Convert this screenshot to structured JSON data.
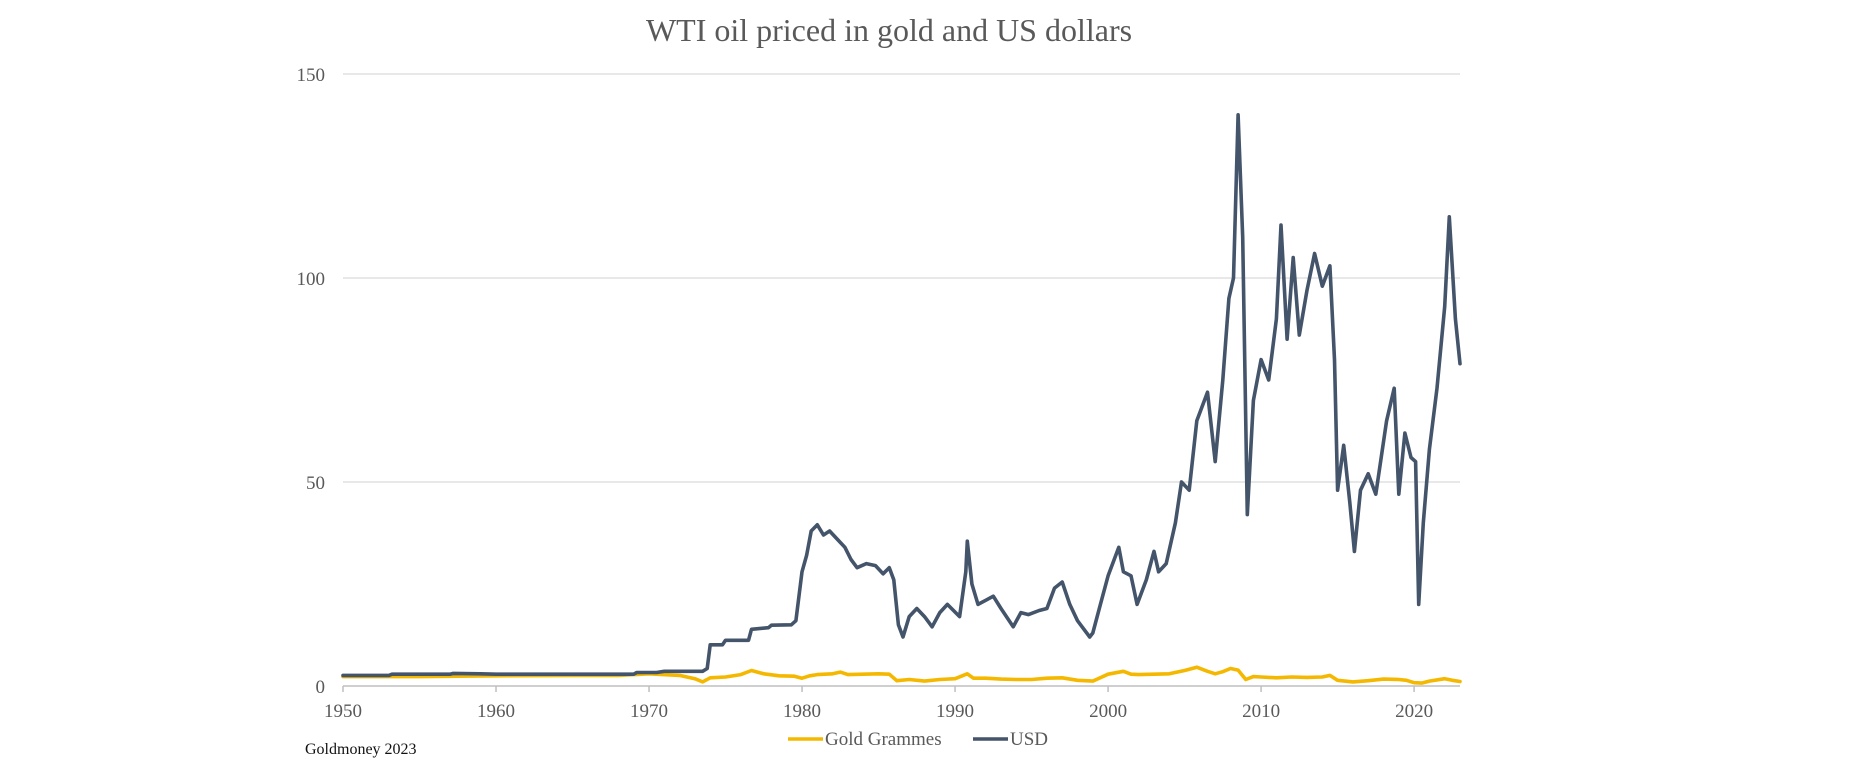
{
  "chart_data": {
    "type": "line",
    "title": "WTI oil priced in gold and US dollars",
    "xlabel": "",
    "ylabel": "",
    "xlim": [
      1950,
      2023
    ],
    "ylim": [
      0,
      150
    ],
    "xticks": [
      "1950",
      "1960",
      "1970",
      "1980",
      "1990",
      "2000",
      "2010",
      "2020"
    ],
    "yticks": [
      "0",
      "50",
      "100",
      "150"
    ],
    "grid": "horizontal",
    "legend": "bottom",
    "source": "Goldmoney 2023",
    "colors": {
      "gold": "#F5B800",
      "usd": "#44546A",
      "grid": "#D9D9D9",
      "axis": "#BFBFBF"
    },
    "series": [
      {
        "name": "Gold Grammes",
        "color": "#F5B800",
        "points": [
          [
            1950,
            2.3
          ],
          [
            1955,
            2.3
          ],
          [
            1960,
            2.5
          ],
          [
            1965,
            2.6
          ],
          [
            1968,
            2.6
          ],
          [
            1970,
            3.0
          ],
          [
            1972,
            2.6
          ],
          [
            1973,
            1.8
          ],
          [
            1973.5,
            1.0
          ],
          [
            1974,
            2.0
          ],
          [
            1975,
            2.2
          ],
          [
            1976,
            2.8
          ],
          [
            1976.7,
            3.8
          ],
          [
            1977.5,
            3.0
          ],
          [
            1978.5,
            2.5
          ],
          [
            1979.5,
            2.4
          ],
          [
            1980,
            1.9
          ],
          [
            1980.5,
            2.5
          ],
          [
            1981,
            2.8
          ],
          [
            1982,
            3.0
          ],
          [
            1982.5,
            3.4
          ],
          [
            1983,
            2.8
          ],
          [
            1984,
            2.9
          ],
          [
            1985,
            3.0
          ],
          [
            1985.7,
            2.9
          ],
          [
            1986.2,
            1.3
          ],
          [
            1987,
            1.6
          ],
          [
            1988,
            1.2
          ],
          [
            1989,
            1.6
          ],
          [
            1990,
            1.8
          ],
          [
            1990.8,
            3.0
          ],
          [
            1991.2,
            1.9
          ],
          [
            1992,
            1.9
          ],
          [
            1993,
            1.7
          ],
          [
            1994,
            1.6
          ],
          [
            1995,
            1.6
          ],
          [
            1996,
            1.9
          ],
          [
            1997,
            2.0
          ],
          [
            1998,
            1.4
          ],
          [
            1999,
            1.2
          ],
          [
            2000,
            2.9
          ],
          [
            2001,
            3.6
          ],
          [
            2001.5,
            2.9
          ],
          [
            2002,
            2.8
          ],
          [
            2003,
            2.9
          ],
          [
            2004,
            3.0
          ],
          [
            2005,
            3.8
          ],
          [
            2005.8,
            4.6
          ],
          [
            2006.5,
            3.6
          ],
          [
            2007,
            3.0
          ],
          [
            2007.5,
            3.5
          ],
          [
            2008,
            4.3
          ],
          [
            2008.5,
            3.9
          ],
          [
            2009,
            1.6
          ],
          [
            2009.5,
            2.3
          ],
          [
            2010,
            2.2
          ],
          [
            2011,
            2.0
          ],
          [
            2012,
            2.2
          ],
          [
            2013,
            2.1
          ],
          [
            2014,
            2.2
          ],
          [
            2014.5,
            2.6
          ],
          [
            2015,
            1.4
          ],
          [
            2016,
            1.0
          ],
          [
            2017,
            1.3
          ],
          [
            2018,
            1.7
          ],
          [
            2019,
            1.6
          ],
          [
            2019.5,
            1.4
          ],
          [
            2020,
            0.8
          ],
          [
            2020.5,
            0.7
          ],
          [
            2021,
            1.2
          ],
          [
            2022,
            1.8
          ],
          [
            2022.5,
            1.4
          ],
          [
            2023,
            1.1
          ]
        ]
      },
      {
        "name": "USD",
        "color": "#44546A",
        "points": [
          [
            1950,
            2.6
          ],
          [
            1953,
            2.6
          ],
          [
            1953.2,
            2.9
          ],
          [
            1957,
            2.9
          ],
          [
            1957.2,
            3.1
          ],
          [
            1959,
            3.0
          ],
          [
            1960,
            2.9
          ],
          [
            1965,
            2.9
          ],
          [
            1969,
            2.9
          ],
          [
            1969.2,
            3.3
          ],
          [
            1970.5,
            3.3
          ],
          [
            1971,
            3.6
          ],
          [
            1973.5,
            3.6
          ],
          [
            1973.8,
            4.3
          ],
          [
            1974,
            10.1
          ],
          [
            1974.8,
            10.1
          ],
          [
            1975,
            11.2
          ],
          [
            1976.5,
            11.2
          ],
          [
            1976.7,
            13.9
          ],
          [
            1977.8,
            14.3
          ],
          [
            1978,
            14.9
          ],
          [
            1979.3,
            15.0
          ],
          [
            1979.6,
            16.0
          ],
          [
            1980,
            28.0
          ],
          [
            1980.3,
            32.0
          ],
          [
            1980.6,
            38.0
          ],
          [
            1981,
            39.5
          ],
          [
            1981.4,
            37.0
          ],
          [
            1981.8,
            38.0
          ],
          [
            1982.3,
            36.0
          ],
          [
            1982.8,
            34.0
          ],
          [
            1983.2,
            31.0
          ],
          [
            1983.6,
            29.0
          ],
          [
            1984.2,
            30.0
          ],
          [
            1984.8,
            29.5
          ],
          [
            1985.3,
            27.5
          ],
          [
            1985.7,
            29.0
          ],
          [
            1986,
            26.0
          ],
          [
            1986.3,
            15.0
          ],
          [
            1986.6,
            12.0
          ],
          [
            1987,
            17.0
          ],
          [
            1987.5,
            19.0
          ],
          [
            1988,
            17.0
          ],
          [
            1988.5,
            14.5
          ],
          [
            1989,
            18.0
          ],
          [
            1989.5,
            20.0
          ],
          [
            1990.3,
            17.0
          ],
          [
            1990.7,
            28.0
          ],
          [
            1990.8,
            35.5
          ],
          [
            1991.1,
            25.0
          ],
          [
            1991.5,
            20.0
          ],
          [
            1992,
            21.0
          ],
          [
            1992.5,
            22.0
          ],
          [
            1993,
            19.0
          ],
          [
            1993.8,
            14.5
          ],
          [
            1994.3,
            18.0
          ],
          [
            1994.8,
            17.5
          ],
          [
            1995.5,
            18.5
          ],
          [
            1996,
            19.0
          ],
          [
            1996.5,
            24.0
          ],
          [
            1997,
            25.5
          ],
          [
            1997.5,
            20.0
          ],
          [
            1998,
            16.0
          ],
          [
            1998.8,
            12.0
          ],
          [
            1999,
            13.0
          ],
          [
            1999.5,
            20.0
          ],
          [
            2000,
            27.0
          ],
          [
            2000.7,
            34.0
          ],
          [
            2001,
            28.0
          ],
          [
            2001.5,
            27.0
          ],
          [
            2001.9,
            20.0
          ],
          [
            2002.5,
            26.0
          ],
          [
            2003,
            33.0
          ],
          [
            2003.3,
            28.0
          ],
          [
            2003.8,
            30.0
          ],
          [
            2004.4,
            40.0
          ],
          [
            2004.8,
            50.0
          ],
          [
            2005.3,
            48.0
          ],
          [
            2005.8,
            65.0
          ],
          [
            2006.5,
            72.0
          ],
          [
            2007,
            55.0
          ],
          [
            2007.5,
            75.0
          ],
          [
            2007.9,
            95.0
          ],
          [
            2008.2,
            100.0
          ],
          [
            2008.5,
            140.0
          ],
          [
            2008.8,
            110.0
          ],
          [
            2009.1,
            42.0
          ],
          [
            2009.5,
            70.0
          ],
          [
            2010,
            80.0
          ],
          [
            2010.5,
            75.0
          ],
          [
            2011,
            90.0
          ],
          [
            2011.3,
            113.0
          ],
          [
            2011.7,
            85.0
          ],
          [
            2012.1,
            105.0
          ],
          [
            2012.5,
            86.0
          ],
          [
            2013,
            97.0
          ],
          [
            2013.5,
            106.0
          ],
          [
            2014,
            98.0
          ],
          [
            2014.5,
            103.0
          ],
          [
            2014.8,
            80.0
          ],
          [
            2015,
            48.0
          ],
          [
            2015.4,
            59.0
          ],
          [
            2015.8,
            45.0
          ],
          [
            2016.1,
            33.0
          ],
          [
            2016.5,
            48.0
          ],
          [
            2017,
            52.0
          ],
          [
            2017.5,
            47.0
          ],
          [
            2018.2,
            65.0
          ],
          [
            2018.7,
            73.0
          ],
          [
            2019,
            47.0
          ],
          [
            2019.4,
            62.0
          ],
          [
            2019.8,
            56.0
          ],
          [
            2020.1,
            55.0
          ],
          [
            2020.3,
            20.0
          ],
          [
            2020.6,
            40.0
          ],
          [
            2021,
            58.0
          ],
          [
            2021.5,
            73.0
          ],
          [
            2022,
            93.0
          ],
          [
            2022.3,
            115.0
          ],
          [
            2022.7,
            90.0
          ],
          [
            2023,
            79.0
          ]
        ]
      }
    ]
  }
}
